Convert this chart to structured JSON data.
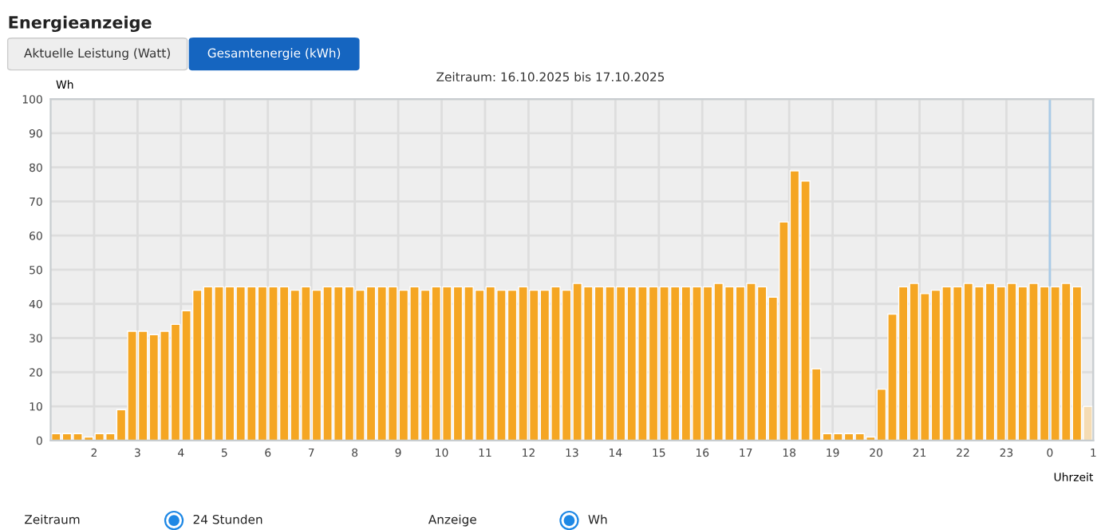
{
  "chart_data": {
    "type": "bar",
    "title": "Energieanzeige",
    "subtitle": "Zeitraum: 16.10.2025 bis 17.10.2025",
    "ylabel": "Wh",
    "xlabel": "Uhrzeit",
    "annotations": [
      "Aktuelle Leistung (Watt)",
      "Gesamtenergie (kWh)",
      "Zeitraum",
      "24 Stunden",
      "Anzeige",
      "Wh"
    ],
    "x": [
      "2025-10-16T01:00",
      "2025-10-16T01:15",
      "2025-10-16T01:30",
      "2025-10-16T01:45",
      "2025-10-16T02:00",
      "2025-10-16T02:15",
      "2025-10-16T02:30",
      "2025-10-16T02:45",
      "2025-10-16T03:00",
      "2025-10-16T03:15",
      "2025-10-16T03:30",
      "2025-10-16T03:45",
      "2025-10-16T04:00",
      "2025-10-16T04:15",
      "2025-10-16T04:30",
      "2025-10-16T04:45",
      "2025-10-16T05:00",
      "2025-10-16T05:15",
      "2025-10-16T05:30",
      "2025-10-16T05:45",
      "2025-10-16T06:00",
      "2025-10-16T06:15",
      "2025-10-16T06:30",
      "2025-10-16T06:45",
      "2025-10-16T07:00",
      "2025-10-16T07:15",
      "2025-10-16T07:30",
      "2025-10-16T07:45",
      "2025-10-16T08:00",
      "2025-10-16T08:15",
      "2025-10-16T08:30",
      "2025-10-16T08:45",
      "2025-10-16T09:00",
      "2025-10-16T09:15",
      "2025-10-16T09:30",
      "2025-10-16T09:45",
      "2025-10-16T10:00",
      "2025-10-16T10:15",
      "2025-10-16T10:30",
      "2025-10-16T10:45",
      "2025-10-16T11:00",
      "2025-10-16T11:15",
      "2025-10-16T11:30",
      "2025-10-16T11:45",
      "2025-10-16T12:00",
      "2025-10-16T12:15",
      "2025-10-16T12:30",
      "2025-10-16T12:45",
      "2025-10-16T13:00",
      "2025-10-16T13:15",
      "2025-10-16T13:30",
      "2025-10-16T13:45",
      "2025-10-16T14:00",
      "2025-10-16T14:15",
      "2025-10-16T14:30",
      "2025-10-16T14:45",
      "2025-10-16T15:00",
      "2025-10-16T15:15",
      "2025-10-16T15:30",
      "2025-10-16T15:45",
      "2025-10-16T16:00",
      "2025-10-16T16:15",
      "2025-10-16T16:30",
      "2025-10-16T16:45",
      "2025-10-16T17:00",
      "2025-10-16T17:15",
      "2025-10-16T17:30",
      "2025-10-16T17:45",
      "2025-10-16T18:00",
      "2025-10-16T18:15",
      "2025-10-16T18:30",
      "2025-10-16T18:45",
      "2025-10-16T19:00",
      "2025-10-16T19:15",
      "2025-10-16T19:30",
      "2025-10-16T19:45",
      "2025-10-16T20:00",
      "2025-10-16T20:15",
      "2025-10-16T20:30",
      "2025-10-16T20:45",
      "2025-10-16T21:00",
      "2025-10-16T21:15",
      "2025-10-16T21:30",
      "2025-10-16T21:45",
      "2025-10-16T22:00",
      "2025-10-16T22:15",
      "2025-10-16T22:30",
      "2025-10-16T22:45",
      "2025-10-16T23:00",
      "2025-10-16T23:15",
      "2025-10-16T23:30",
      "2025-10-16T23:45",
      "2025-10-17T00:00",
      "2025-10-17T00:15",
      "2025-10-17T00:30",
      "2025-10-17T00:45"
    ],
    "values": [
      2,
      2,
      2,
      1,
      2,
      2,
      9,
      32,
      32,
      31,
      32,
      34,
      38,
      44,
      45,
      45,
      45,
      45,
      45,
      45,
      45,
      45,
      44,
      45,
      44,
      45,
      45,
      45,
      44,
      45,
      45,
      45,
      44,
      45,
      44,
      45,
      45,
      45,
      45,
      44,
      45,
      44,
      44,
      45,
      44,
      44,
      45,
      44,
      46,
      45,
      45,
      45,
      45,
      45,
      45,
      45,
      45,
      45,
      45,
      45,
      45,
      46,
      45,
      45,
      46,
      45,
      42,
      64,
      79,
      76,
      21,
      2,
      2,
      2,
      2,
      1,
      15,
      37,
      45,
      46,
      43,
      44,
      45,
      45,
      46,
      45,
      46,
      45,
      46,
      45,
      46,
      45,
      45,
      46,
      45,
      10
    ],
    "colors": [
      "#f5a623",
      "#f5a623",
      "#f5a623",
      "#f5a623",
      "#f5a623",
      "#f5a623",
      "#f5a623",
      "#f5a623",
      "#f5a623",
      "#f5a623",
      "#f5a623",
      "#f5a623",
      "#f5a623",
      "#f5a623",
      "#f5a623",
      "#f5a623",
      "#f5a623",
      "#f5a623",
      "#f5a623",
      "#f5a623",
      "#f5a623",
      "#f5a623",
      "#f5a623",
      "#f5a623",
      "#f5a623",
      "#f5a623",
      "#f5a623",
      "#f5a623",
      "#f5a623",
      "#f5a623",
      "#f5a623",
      "#f5a623",
      "#f5a623",
      "#f5a623",
      "#f5a623",
      "#f5a623",
      "#f5a623",
      "#f5a623",
      "#f5a623",
      "#f5a623",
      "#f5a623",
      "#f5a623",
      "#f5a623",
      "#f5a623",
      "#f5a623",
      "#f5a623",
      "#f5a623",
      "#f5a623",
      "#f5a623",
      "#f5a623",
      "#f5a623",
      "#f5a623",
      "#f5a623",
      "#f5a623",
      "#f5a623",
      "#f5a623",
      "#f5a623",
      "#f5a623",
      "#f5a623",
      "#f5a623",
      "#f5a623",
      "#f5a623",
      "#f5a623",
      "#f5a623",
      "#f5a623",
      "#f5a623",
      "#f5a623",
      "#f5a623",
      "#f5a623",
      "#f5a623",
      "#f5a623",
      "#f5a623",
      "#f5a623",
      "#f5a623",
      "#f5a623",
      "#f5a623",
      "#f5a623",
      "#f5a623",
      "#f5a623",
      "#f5a623",
      "#f5a623",
      "#f5a623",
      "#f5a623",
      "#f5a623",
      "#f5a623",
      "#f5a623",
      "#f5a623",
      "#f5a623",
      "#f5a623",
      "#f5a623",
      "#f5a623",
      "#f5a623",
      "#f5a623",
      "#f5a623",
      "#f5a623",
      "#f5dcb4"
    ],
    "xlim": [
      "2025-10-16T01:00",
      "2025-10-17T01:00"
    ],
    "xticks": [
      {
        "value": "2025-10-16T02:00",
        "label": "2"
      },
      {
        "value": "2025-10-16T03:00",
        "label": "3"
      },
      {
        "value": "2025-10-16T04:00",
        "label": "4"
      },
      {
        "value": "2025-10-16T05:00",
        "label": "5"
      },
      {
        "value": "2025-10-16T06:00",
        "label": "6"
      },
      {
        "value": "2025-10-16T07:00",
        "label": "7"
      },
      {
        "value": "2025-10-16T08:00",
        "label": "8"
      },
      {
        "value": "2025-10-16T09:00",
        "label": "9"
      },
      {
        "value": "2025-10-16T10:00",
        "label": "10"
      },
      {
        "value": "2025-10-16T11:00",
        "label": "11"
      },
      {
        "value": "2025-10-16T12:00",
        "label": "12"
      },
      {
        "value": "2025-10-16T13:00",
        "label": "13"
      },
      {
        "value": "2025-10-16T14:00",
        "label": "14"
      },
      {
        "value": "2025-10-16T15:00",
        "label": "15"
      },
      {
        "value": "2025-10-16T16:00",
        "label": "16"
      },
      {
        "value": "2025-10-16T17:00",
        "label": "17"
      },
      {
        "value": "2025-10-16T18:00",
        "label": "18"
      },
      {
        "value": "2025-10-16T19:00",
        "label": "19"
      },
      {
        "value": "2025-10-16T20:00",
        "label": "20"
      },
      {
        "value": "2025-10-16T21:00",
        "label": "21"
      },
      {
        "value": "2025-10-16T22:00",
        "label": "22"
      },
      {
        "value": "2025-10-16T23:00",
        "label": "23"
      },
      {
        "value": "2025-10-17T00:00",
        "label": "0"
      },
      {
        "value": "2025-10-17T01:00",
        "label": "1"
      }
    ],
    "ylim": [
      0,
      100
    ],
    "yticks": [
      0,
      10,
      20,
      30,
      40,
      50,
      60,
      70,
      80,
      90,
      100
    ],
    "ref_lines": [
      {
        "axis": "x",
        "value": "2025-10-17T00:00",
        "label": null,
        "color": "#a8cbe8"
      }
    ],
    "grid": true,
    "legend": false
  }
}
